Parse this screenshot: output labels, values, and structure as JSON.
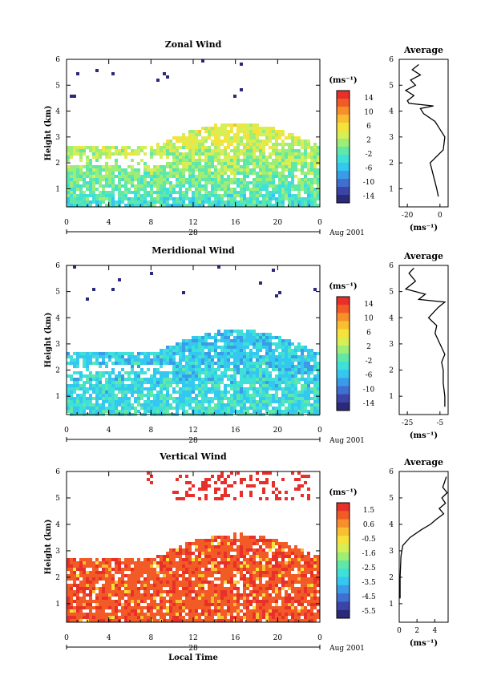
{
  "figure": {
    "x_axis_label": "Local Time",
    "date_label": "Aug 2001",
    "date_marker": "28"
  },
  "chart_data": [
    {
      "type": "heatmap",
      "title": "Zonal Wind",
      "ylabel": "Height (km)",
      "xlim": [
        0,
        24
      ],
      "ylim": [
        0.3,
        6
      ],
      "x_ticks": [
        "0",
        "4",
        "8",
        "12",
        "16",
        "20",
        "0"
      ],
      "y_ticks": [
        "1",
        "2",
        "3",
        "4",
        "5",
        "6"
      ],
      "colorbar": {
        "unit": "(ms⁻¹)",
        "ticks": [
          "14",
          "10",
          "6",
          "2",
          "-2",
          "-6",
          "-10",
          "-14"
        ],
        "range": [
          -16,
          16
        ]
      },
      "profile": {
        "title": "Average",
        "xlabel": "(ms⁻¹)",
        "x_ticks": [
          "-20",
          "0"
        ],
        "xlim": [
          -25,
          5
        ],
        "y_ticks": [
          "1",
          "2",
          "3",
          "4",
          "5",
          "6"
        ],
        "height": [
          0.7,
          1.0,
          1.5,
          2.0,
          2.5,
          3.0,
          3.3,
          3.6,
          3.9,
          4.1,
          4.2,
          4.3,
          4.4,
          4.6,
          4.8,
          5.0,
          5.2,
          5.4,
          5.6,
          5.8
        ],
        "value": [
          -1,
          -2,
          -4,
          -6,
          2,
          3,
          0,
          -3,
          -10,
          -12,
          -4,
          -19,
          -20,
          -16,
          -21,
          -15,
          -18,
          -12,
          -17,
          -13
        ]
      }
    },
    {
      "type": "heatmap",
      "title": "Meridional Wind",
      "ylabel": "Height (km)",
      "xlim": [
        0,
        24
      ],
      "ylim": [
        0.3,
        6
      ],
      "x_ticks": [
        "0",
        "4",
        "8",
        "12",
        "16",
        "20",
        "0"
      ],
      "y_ticks": [
        "1",
        "2",
        "3",
        "4",
        "5",
        "6"
      ],
      "colorbar": {
        "unit": "(ms⁻¹)",
        "ticks": [
          "14",
          "10",
          "6",
          "2",
          "-2",
          "-6",
          "-10",
          "-14"
        ],
        "range": [
          -16,
          16
        ]
      },
      "profile": {
        "title": "Average",
        "xlabel": "(ms⁻¹)",
        "x_ticks": [
          "-25",
          "-5"
        ],
        "xlim": [
          -30,
          0
        ],
        "y_ticks": [
          "1",
          "2",
          "3",
          "4",
          "5",
          "6"
        ],
        "height": [
          0.6,
          1.0,
          1.5,
          2.0,
          2.3,
          2.6,
          3.0,
          3.4,
          3.7,
          4.0,
          4.2,
          4.4,
          4.6,
          4.7,
          4.9,
          5.1,
          5.4,
          5.7,
          5.9
        ],
        "value": [
          -2,
          -2,
          -3,
          -3,
          -4,
          -2,
          -5,
          -8,
          -7,
          -12,
          -9,
          -6,
          -2,
          -18,
          -14,
          -26,
          -20,
          -24,
          -21
        ]
      }
    },
    {
      "type": "heatmap",
      "title": "Vertical Wind",
      "ylabel": "Height (km)",
      "xlim": [
        0,
        24
      ],
      "ylim": [
        0.3,
        6
      ],
      "x_ticks": [
        "0",
        "4",
        "8",
        "12",
        "16",
        "20",
        "0"
      ],
      "y_ticks": [
        "1",
        "2",
        "3",
        "4",
        "5",
        "6"
      ],
      "colorbar": {
        "unit": "(ms⁻¹)",
        "ticks": [
          "1.5",
          "0.6",
          "-0.5",
          "-1.6",
          "-2.5",
          "-3.5",
          "-4.5",
          "-5.5"
        ],
        "range": [
          -6,
          2
        ]
      },
      "profile": {
        "title": "Average",
        "xlabel": "(ms⁻¹)",
        "x_ticks": [
          "0",
          "2",
          "4"
        ],
        "xlim": [
          0,
          5.5
        ],
        "y_ticks": [
          "1",
          "2",
          "3",
          "4",
          "5",
          "6"
        ],
        "height": [
          1.2,
          2.0,
          2.8,
          3.2,
          3.5,
          3.8,
          4.0,
          4.2,
          4.4,
          4.6,
          4.8,
          5.0,
          5.2,
          5.4,
          5.6,
          5.8
        ],
        "value": [
          0.1,
          0.1,
          0.2,
          0.4,
          1.2,
          2.5,
          3.5,
          4.2,
          5.0,
          4.5,
          5.2,
          4.8,
          5.4,
          4.9,
          5.1,
          5.3
        ]
      }
    }
  ]
}
